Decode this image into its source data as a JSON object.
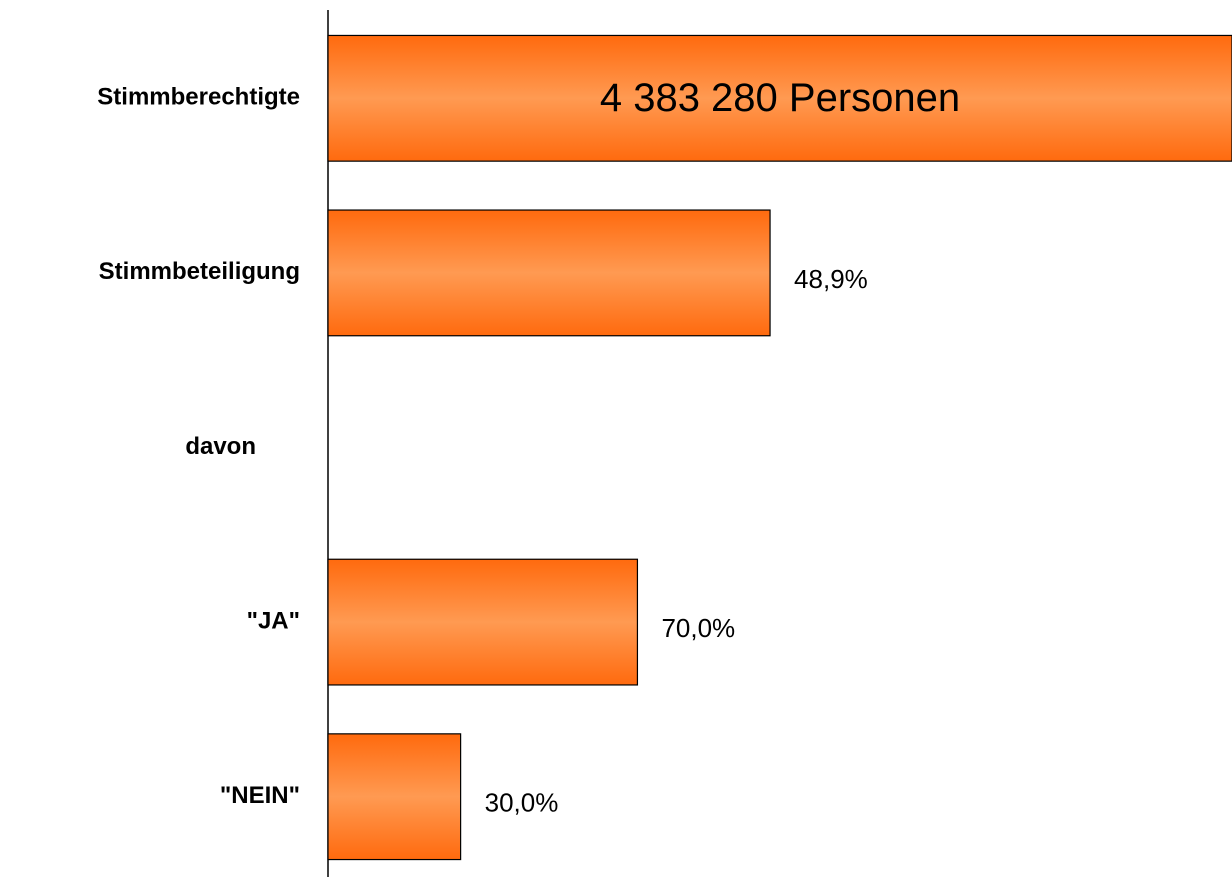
{
  "chart_data": {
    "type": "bar",
    "orientation": "horizontal",
    "categories": [
      "Stimmberechtigte",
      "Stimmbeteiligung",
      "davon",
      "\"JA\"",
      "\"NEIN\""
    ],
    "values": [
      4383280,
      48.9,
      null,
      70.0,
      30.0
    ],
    "value_labels": [
      "4 383 280 Personen",
      "48,9%",
      null,
      "70,0%",
      "30,0%"
    ],
    "color": "#ff7a22"
  }
}
